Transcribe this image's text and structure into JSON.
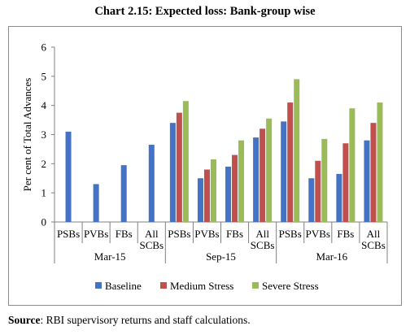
{
  "title": "Chart 2.15: Expected loss: Bank-group wise",
  "source_label": "Source",
  "source_text": ": RBI supervisory returns and staff calculations.",
  "chart_data": {
    "type": "bar",
    "ylabel": "Per cent of Total Advances",
    "ylim": [
      0,
      6
    ],
    "yticks": [
      0,
      1,
      2,
      3,
      4,
      5,
      6
    ],
    "grid": false,
    "legend_position": "bottom",
    "groups": [
      {
        "label": "Mar-15",
        "categories": [
          "PSBs",
          "PVBs",
          "FBs",
          "All SCBs"
        ]
      },
      {
        "label": "Sep-15",
        "categories": [
          "PSBs",
          "PVBs",
          "FBs",
          "All SCBs"
        ]
      },
      {
        "label": "Mar-16",
        "categories": [
          "PSBs",
          "PVBs",
          "FBs",
          "All SCBs"
        ]
      }
    ],
    "series": [
      {
        "name": "Baseline",
        "color": "#4472c4",
        "values": [
          3.1,
          1.3,
          1.95,
          2.65,
          3.4,
          1.5,
          1.9,
          2.9,
          3.45,
          1.5,
          1.65,
          2.8
        ]
      },
      {
        "name": "Medium Stress",
        "color": "#c0504d",
        "values": [
          null,
          null,
          null,
          null,
          3.75,
          1.8,
          2.3,
          3.2,
          4.1,
          2.1,
          2.7,
          3.4
        ]
      },
      {
        "name": "Severe Stress",
        "color": "#9bbb59",
        "values": [
          null,
          null,
          null,
          null,
          4.15,
          2.15,
          2.8,
          3.55,
          4.9,
          2.85,
          3.9,
          4.1
        ]
      }
    ]
  }
}
